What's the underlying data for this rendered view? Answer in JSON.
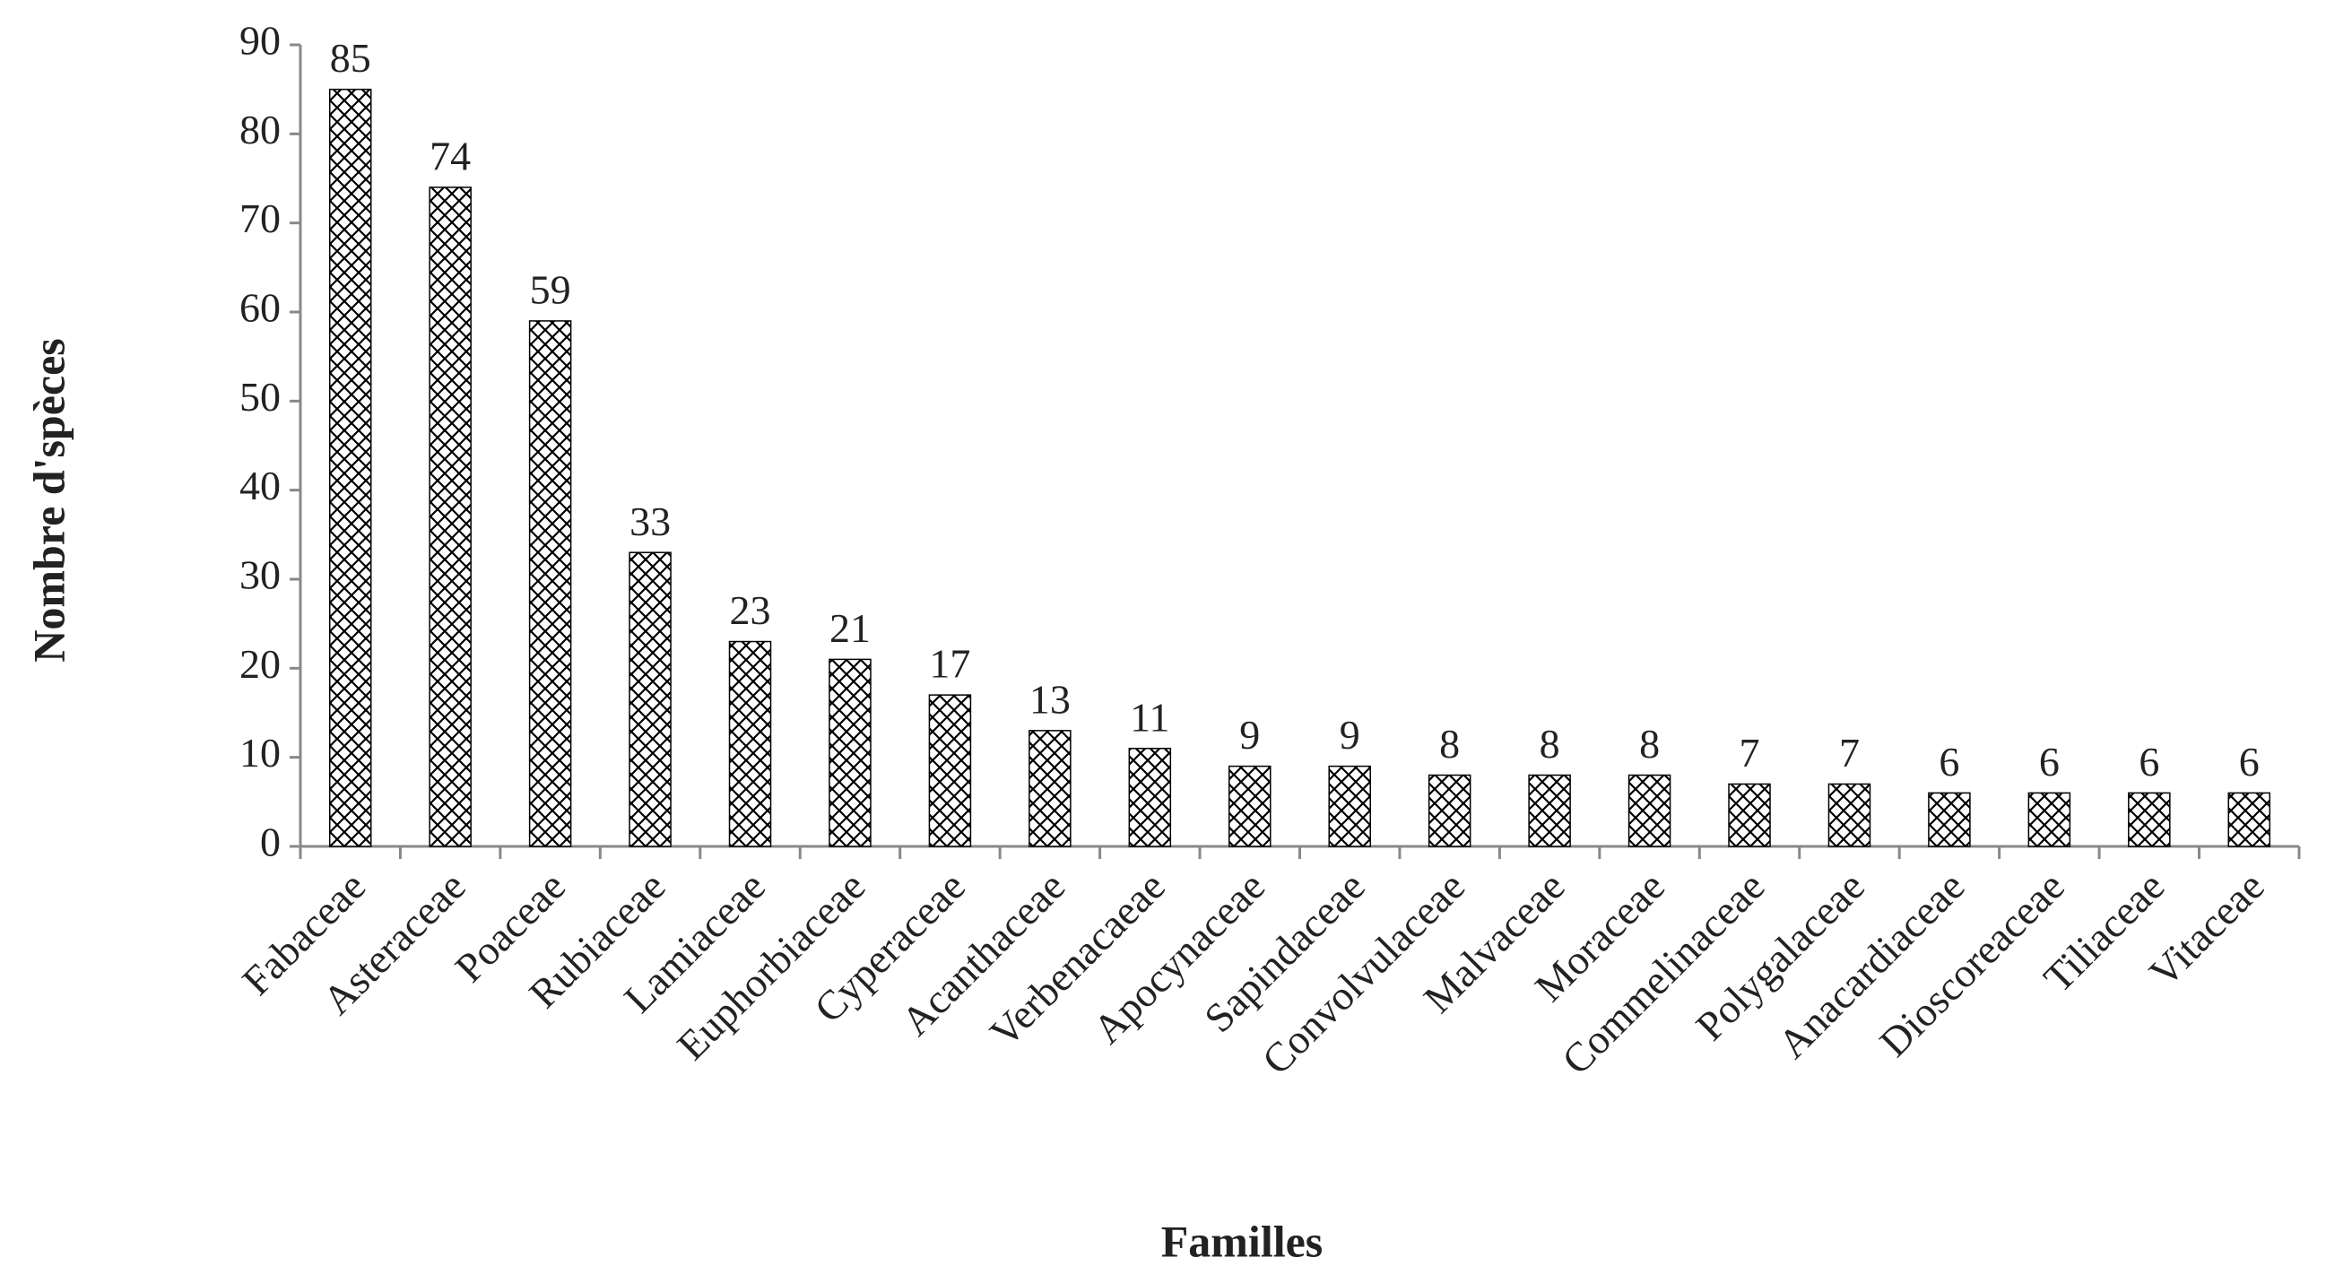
{
  "chart_data": {
    "type": "bar",
    "x_label": "Familles",
    "y_label": "Nombre d'spèces",
    "categories": [
      "Fabaceae",
      "Asteraceae",
      "Poaceae",
      "Rubiaceae",
      "Lamiaceae",
      "Euphorbiaceae",
      "Cyperaceae",
      "Acanthaceae",
      "Verbenacaeae",
      "Apocynaceae",
      "Sapindaceae",
      "Convolvulaceae",
      "Malvaceae",
      "Moraceae",
      "Commelinaceae",
      "Polygalaceae",
      "Anacardiaceae",
      "Dioscoreaceae",
      "Tiliaceae",
      "Vitaceae"
    ],
    "values": [
      85,
      74,
      59,
      33,
      23,
      21,
      17,
      13,
      11,
      9,
      9,
      8,
      8,
      8,
      7,
      7,
      6,
      6,
      6,
      6
    ],
    "color": "#000000",
    "ylim": [
      0,
      90
    ],
    "yticks": [
      0,
      10,
      20,
      30,
      40,
      50,
      60,
      70,
      80,
      90
    ],
    "grid": false
  }
}
